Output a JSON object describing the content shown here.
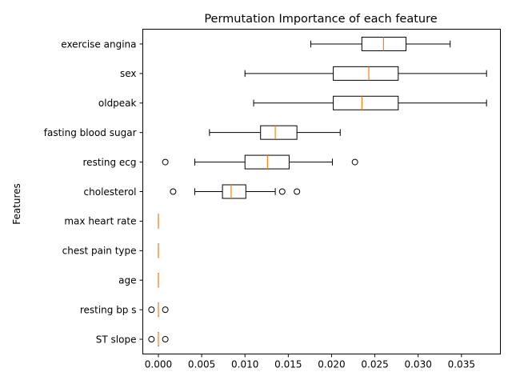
{
  "chart_data": {
    "type": "boxplot",
    "orientation": "horizontal",
    "title": "Permutation Importance of each feature",
    "xlabel": "",
    "ylabel": "Features",
    "xlim": [
      -0.0018,
      0.0395
    ],
    "x_ticks": [
      0.0,
      0.005,
      0.01,
      0.015,
      0.02,
      0.025,
      0.03,
      0.035
    ],
    "x_tick_labels": [
      "0.000",
      "0.005",
      "0.010",
      "0.015",
      "0.020",
      "0.025",
      "0.030",
      "0.035"
    ],
    "grid": false,
    "box_color": "#000000",
    "median_color": "#ff7f0e",
    "categories": [
      {
        "name": "exercise angina",
        "whisker_low": 0.0176,
        "q1": 0.0235,
        "median": 0.026,
        "q3": 0.0286,
        "whisker_high": 0.0337,
        "outliers": []
      },
      {
        "name": "sex",
        "whisker_low": 0.01,
        "q1": 0.0202,
        "median": 0.0243,
        "q3": 0.0277,
        "whisker_high": 0.0379,
        "outliers": []
      },
      {
        "name": "oldpeak",
        "whisker_low": 0.011,
        "q1": 0.0202,
        "median": 0.0235,
        "q3": 0.0277,
        "whisker_high": 0.0379,
        "outliers": []
      },
      {
        "name": "fasting blood sugar",
        "whisker_low": 0.0059,
        "q1": 0.0118,
        "median": 0.0135,
        "q3": 0.016,
        "whisker_high": 0.021,
        "outliers": []
      },
      {
        "name": "resting ecg",
        "whisker_low": 0.0042,
        "q1": 0.01,
        "median": 0.0126,
        "q3": 0.0151,
        "whisker_high": 0.0201,
        "outliers": [
          0.0008,
          0.0227
        ]
      },
      {
        "name": "cholesterol",
        "whisker_low": 0.0042,
        "q1": 0.0074,
        "median": 0.0084,
        "q3": 0.0101,
        "whisker_high": 0.0135,
        "outliers": [
          0.0017,
          0.0143,
          0.016
        ]
      },
      {
        "name": "max heart rate",
        "whisker_low": 0.0,
        "q1": 0.0,
        "median": 0.0,
        "q3": 0.0,
        "whisker_high": 0.0,
        "outliers": []
      },
      {
        "name": "chest pain type",
        "whisker_low": 0.0,
        "q1": 0.0,
        "median": 0.0,
        "q3": 0.0,
        "whisker_high": 0.0,
        "outliers": []
      },
      {
        "name": "age",
        "whisker_low": 0.0,
        "q1": 0.0,
        "median": 0.0,
        "q3": 0.0,
        "whisker_high": 0.0,
        "outliers": []
      },
      {
        "name": "resting bp s",
        "whisker_low": 0.0,
        "q1": 0.0,
        "median": 0.0,
        "q3": 0.0,
        "whisker_high": 0.0,
        "outliers": [
          -0.0008,
          0.0008
        ]
      },
      {
        "name": "ST slope",
        "whisker_low": 0.0,
        "q1": 0.0,
        "median": 0.0,
        "q3": 0.0,
        "whisker_high": 0.0,
        "outliers": [
          -0.0008,
          0.0008
        ]
      }
    ]
  }
}
